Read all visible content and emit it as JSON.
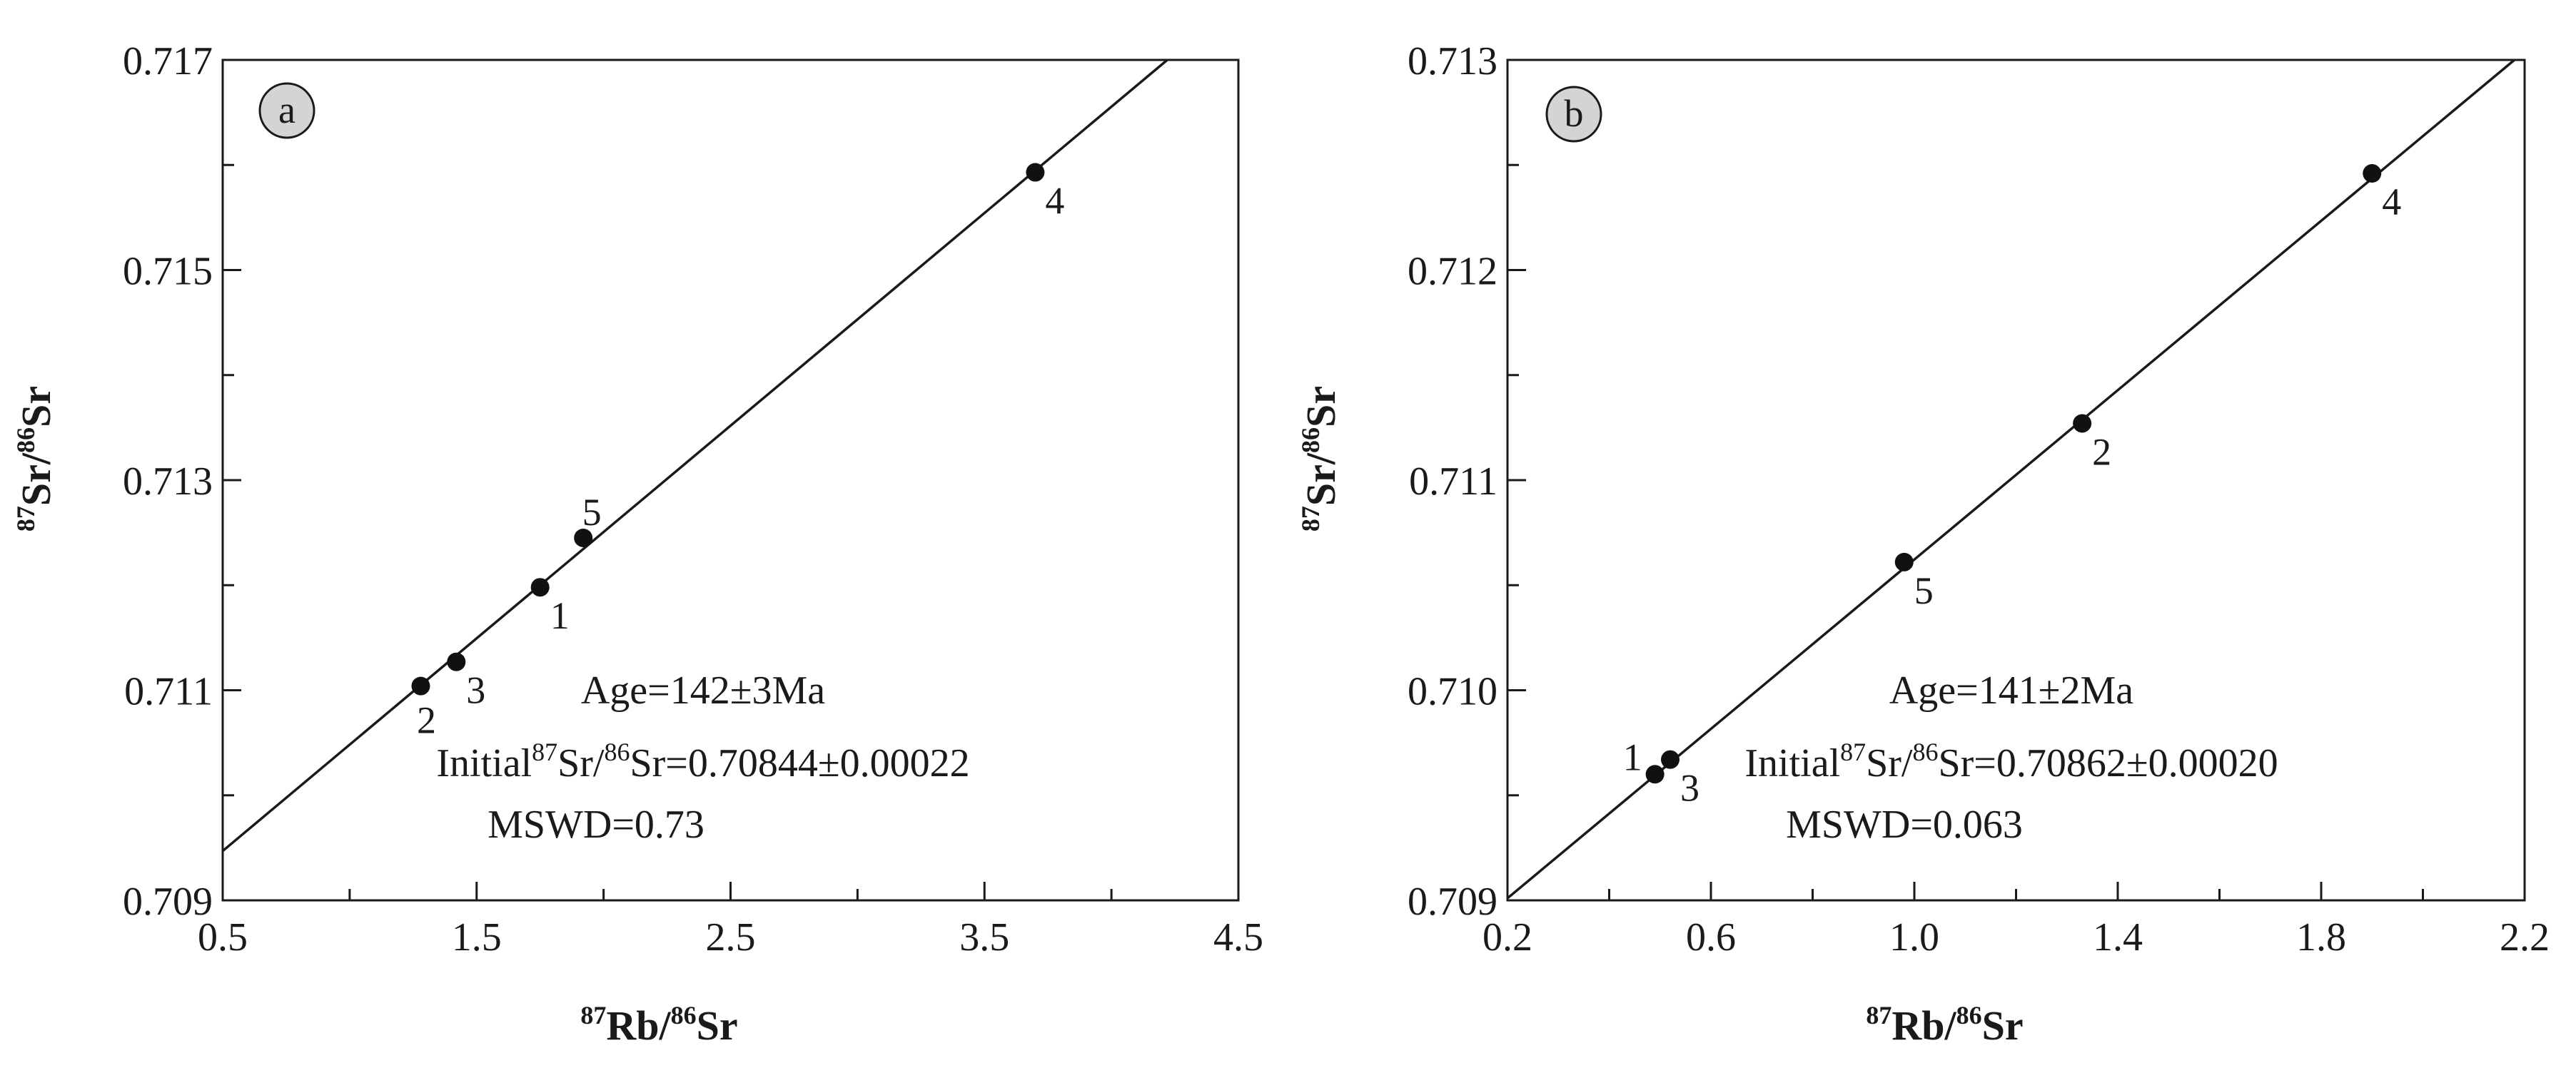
{
  "chart_data": [
    {
      "type": "scatter",
      "panel_label": "a",
      "xlabel": {
        "sup1": "87",
        "base1": "Rb/",
        "sup2": "86",
        "base2": "Sr"
      },
      "ylabel": {
        "sup1": "87",
        "base1": "Sr/",
        "sup2": "86",
        "base2": "Sr"
      },
      "xlim": [
        0.5,
        4.5
      ],
      "ylim": [
        0.709,
        0.717
      ],
      "x_major_ticks": [
        0.5,
        1.5,
        2.5,
        3.5,
        4.5
      ],
      "x_tick_labels": [
        "0.5",
        "1.5",
        "2.5",
        "3.5",
        "4.5"
      ],
      "x_minor_ticks": [
        1.0,
        2.0,
        3.0,
        4.0
      ],
      "y_major_ticks": [
        0.709,
        0.711,
        0.713,
        0.715,
        0.717
      ],
      "y_tick_labels": [
        "0.709",
        "0.711",
        "0.713",
        "0.715",
        "0.717"
      ],
      "y_minor_ticks": [
        0.71,
        0.712,
        0.714,
        0.716
      ],
      "points": [
        {
          "label": "1",
          "x": 1.75,
          "y": 0.71198,
          "label_pos": "below-right"
        },
        {
          "label": "2",
          "x": 1.28,
          "y": 0.71104,
          "label_pos": "below"
        },
        {
          "label": "3",
          "x": 1.42,
          "y": 0.71127,
          "label_pos": "below-right"
        },
        {
          "label": "4",
          "x": 3.7,
          "y": 0.71593,
          "label_pos": "below-right"
        },
        {
          "label": "5",
          "x": 1.92,
          "y": 0.71245,
          "label_pos": "above"
        }
      ],
      "fit_line": {
        "x1": 0.5,
        "y1": 0.70947,
        "x2": 4.22,
        "y2": 0.717
      },
      "annotations": {
        "age": "Age=142±3Ma",
        "initial": {
          "prefix": "Initial",
          "sup1": "87",
          "mid": "Sr/",
          "sup2": "86",
          "suffix": "Sr=0.70844±0.00022"
        },
        "mswd": "MSWD=0.73"
      }
    },
    {
      "type": "scatter",
      "panel_label": "b",
      "xlabel": {
        "sup1": "87",
        "base1": "Rb/",
        "sup2": "86",
        "base2": "Sr"
      },
      "ylabel": {
        "sup1": "87",
        "base1": "Sr/",
        "sup2": "86",
        "base2": "Sr"
      },
      "xlim": [
        0.2,
        2.2
      ],
      "ylim": [
        0.709,
        0.713
      ],
      "x_major_ticks": [
        0.2,
        0.6,
        1.0,
        1.4,
        1.8,
        2.2
      ],
      "x_tick_labels": [
        "0.2",
        "0.6",
        "1.0",
        "1.4",
        "1.8",
        "2.2"
      ],
      "x_minor_ticks": [
        0.4,
        0.8,
        1.2,
        1.6,
        2.0
      ],
      "y_major_ticks": [
        0.709,
        0.71,
        0.711,
        0.712,
        0.713
      ],
      "y_tick_labels": [
        "0.709",
        "0.710",
        "0.711",
        "0.712",
        "0.713"
      ],
      "y_minor_ticks": [
        0.7095,
        0.7105,
        0.7115,
        0.7125
      ],
      "points": [
        {
          "label": "1",
          "x": 0.49,
          "y": 0.7096,
          "label_pos": "left"
        },
        {
          "label": "2",
          "x": 1.33,
          "y": 0.71127,
          "label_pos": "below-right"
        },
        {
          "label": "3",
          "x": 0.52,
          "y": 0.70967,
          "label_pos": "below-right"
        },
        {
          "label": "4",
          "x": 1.9,
          "y": 0.71246,
          "label_pos": "below-right"
        },
        {
          "label": "5",
          "x": 0.98,
          "y": 0.71061,
          "label_pos": "below-right"
        }
      ],
      "fit_line": {
        "x1": 0.2,
        "y1": 0.70901,
        "x2": 2.18,
        "y2": 0.713
      },
      "annotations": {
        "age": "Age=141±2Ma",
        "initial": {
          "prefix": "Initial",
          "sup1": "87",
          "mid": "Sr/",
          "sup2": "86",
          "suffix": "Sr=0.70862±0.00020"
        },
        "mswd": "MSWD=0.063"
      }
    }
  ]
}
